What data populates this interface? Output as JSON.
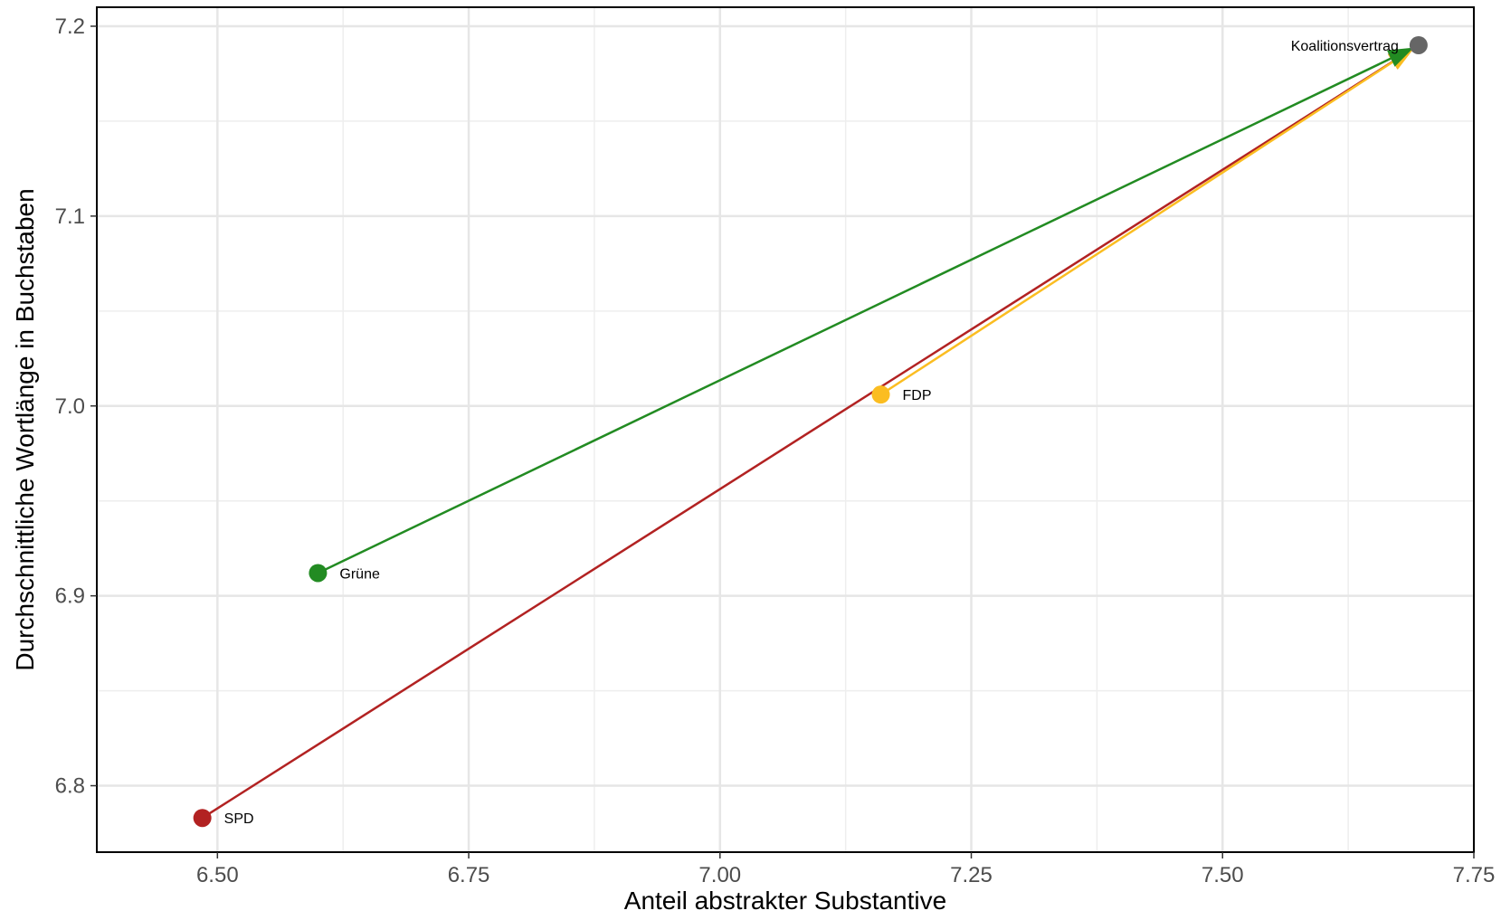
{
  "chart_data": {
    "type": "scatter",
    "title": "",
    "xlabel": "Anteil abstrakter Substantive",
    "ylabel": "Durchschnittliche Wortlänge in Buchstaben",
    "xlim": [
      6.38,
      7.75
    ],
    "ylim": [
      6.765,
      7.21
    ],
    "x_ticks": [
      6.5,
      6.75,
      7.0,
      7.25,
      7.5,
      7.75
    ],
    "x_tick_labels": [
      "6.50",
      "6.75",
      "7.00",
      "7.25",
      "7.50",
      "7.75"
    ],
    "y_ticks": [
      6.8,
      6.9,
      7.0,
      7.1,
      7.2
    ],
    "y_tick_labels": [
      "6.8",
      "6.9",
      "7.0",
      "7.1",
      "7.2"
    ],
    "grid": true,
    "legend": "none",
    "points": [
      {
        "label": "SPD",
        "x": 6.485,
        "y": 6.783,
        "color": "#b22222"
      },
      {
        "label": "Grüne",
        "x": 6.6,
        "y": 6.912,
        "color": "#228b22"
      },
      {
        "label": "FDP",
        "x": 7.16,
        "y": 7.006,
        "color": "#fbbd21"
      },
      {
        "label": "Koalitionsvertrag",
        "x": 7.695,
        "y": 7.19,
        "color": "#666666"
      }
    ],
    "arrows": [
      {
        "from": "SPD",
        "to": "Koalitionsvertrag",
        "color": "#b22222"
      },
      {
        "from": "FDP",
        "to": "Koalitionsvertrag",
        "color": "#fbbd21"
      },
      {
        "from": "Grüne",
        "to": "Koalitionsvertrag",
        "color": "#228b22"
      }
    ]
  }
}
